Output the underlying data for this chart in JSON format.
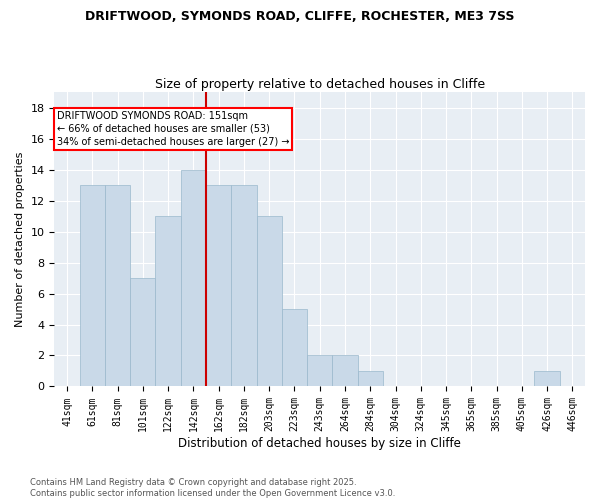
{
  "title1": "DRIFTWOOD, SYMONDS ROAD, CLIFFE, ROCHESTER, ME3 7SS",
  "title2": "Size of property relative to detached houses in Cliffe",
  "xlabel": "Distribution of detached houses by size in Cliffe",
  "ylabel": "Number of detached properties",
  "bar_labels": [
    "41sqm",
    "61sqm",
    "81sqm",
    "101sqm",
    "122sqm",
    "142sqm",
    "162sqm",
    "182sqm",
    "203sqm",
    "223sqm",
    "243sqm",
    "264sqm",
    "284sqm",
    "304sqm",
    "324sqm",
    "345sqm",
    "365sqm",
    "385sqm",
    "405sqm",
    "426sqm",
    "446sqm"
  ],
  "bar_values": [
    0,
    13,
    13,
    7,
    11,
    14,
    13,
    13,
    11,
    5,
    2,
    2,
    1,
    0,
    0,
    0,
    0,
    0,
    0,
    1,
    0
  ],
  "bar_color": "#c9d9e8",
  "bar_edge_color": "#9ab8cc",
  "vline_x": 5.5,
  "vline_color": "#cc0000",
  "annotation_box_text": "DRIFTWOOD SYMONDS ROAD: 151sqm\n← 66% of detached houses are smaller (53)\n34% of semi-detached houses are larger (27) →",
  "ylim": [
    0,
    19
  ],
  "yticks": [
    0,
    2,
    4,
    6,
    8,
    10,
    12,
    14,
    16,
    18
  ],
  "grid_color": "#c8d4e0",
  "footer": "Contains HM Land Registry data © Crown copyright and database right 2025.\nContains public sector information licensed under the Open Government Licence v3.0.",
  "bar_width": 1.0,
  "figsize": [
    6.0,
    5.0
  ],
  "dpi": 100,
  "bg_color": "#e8eef4"
}
